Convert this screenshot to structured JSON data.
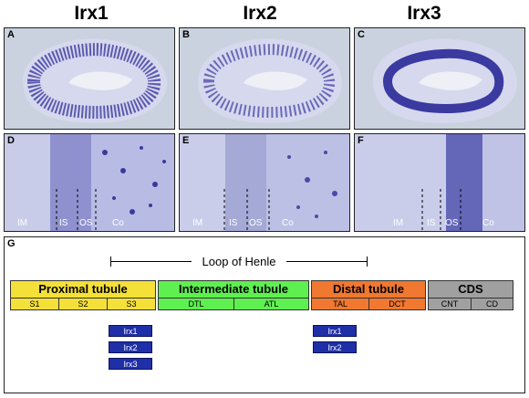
{
  "titles": [
    "Irx1",
    "Irx2",
    "Irx3"
  ],
  "panels": {
    "A": "A",
    "B": "B",
    "C": "C",
    "D": "D",
    "E": "E",
    "F": "F",
    "G": "G"
  },
  "zones": {
    "im": "IM",
    "is": "IS",
    "os": "OS",
    "co": "Co"
  },
  "loop_of_henle": "Loop of Henle",
  "segments": {
    "proximal": {
      "label": "Proximal tubule",
      "subs": [
        "S1",
        "S2",
        "S3"
      ],
      "color": "#f5e03a"
    },
    "intermediate": {
      "label": "Intermediate tubule",
      "subs": [
        "DTL",
        "ATL"
      ],
      "color": "#5ef050"
    },
    "distal": {
      "label": "Distal tubule",
      "subs": [
        "TAL",
        "DCT"
      ],
      "color": "#f07830"
    },
    "cds": {
      "label": "CDS",
      "subs": [
        "CNT",
        "CD"
      ],
      "color": "#a0a0a0"
    }
  },
  "expression": {
    "s3": [
      "Irx1",
      "Irx2",
      "Irx3"
    ],
    "tal": [
      "Irx1",
      "Irx2"
    ]
  },
  "colors": {
    "chip": "#1f2fa8",
    "tissue": "#d8d8ec",
    "stain": "#4a4aa8"
  }
}
